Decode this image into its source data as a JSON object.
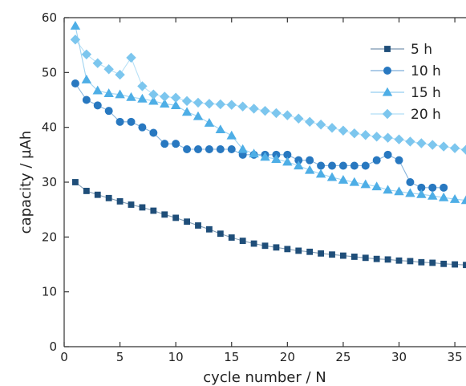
{
  "chart_data": {
    "type": "line",
    "xlabel": "cycle number / N",
    "ylabel": "capacity / µAh",
    "xlim": [
      0,
      36
    ],
    "ylim": [
      0,
      60
    ],
    "xticks": [
      0,
      5,
      10,
      15,
      20,
      25,
      30,
      35
    ],
    "yticks": [
      0,
      10,
      20,
      30,
      40,
      50,
      60
    ],
    "grid": false,
    "legend_position": "top-right",
    "series": [
      {
        "name": "5 h",
        "marker": "square",
        "color": "#1f4e79",
        "x": [
          1,
          2,
          3,
          4,
          5,
          6,
          7,
          8,
          9,
          10,
          11,
          12,
          13,
          14,
          15,
          16,
          17,
          18,
          19,
          20,
          21,
          22,
          23,
          24,
          25,
          26,
          27,
          28,
          29,
          30,
          31,
          32,
          33,
          34,
          35,
          36
        ],
        "y": [
          30,
          28.4,
          27.7,
          27.1,
          26.5,
          25.9,
          25.4,
          24.8,
          24.1,
          23.5,
          22.8,
          22.1,
          21.4,
          20.6,
          19.9,
          19.3,
          18.8,
          18.4,
          18.1,
          17.8,
          17.5,
          17.3,
          17.0,
          16.8,
          16.6,
          16.4,
          16.2,
          16.0,
          15.9,
          15.7,
          15.6,
          15.4,
          15.3,
          15.1,
          15.0,
          14.9
        ]
      },
      {
        "name": "10 h",
        "marker": "circle",
        "color": "#2878c0",
        "x": [
          1,
          2,
          3,
          4,
          5,
          6,
          7,
          8,
          9,
          10,
          11,
          12,
          13,
          14,
          15,
          16,
          17,
          18,
          19,
          20,
          21,
          22,
          23,
          24,
          25,
          26,
          27,
          28,
          29,
          30,
          31,
          32,
          33,
          34
        ],
        "y": [
          48,
          45,
          44,
          43,
          41,
          41,
          40,
          39,
          37,
          37,
          36,
          36,
          36,
          36,
          36,
          35,
          35,
          35,
          35,
          35,
          34,
          34,
          33,
          33,
          33,
          33,
          33,
          34,
          35,
          34,
          30,
          29,
          29,
          29
        ]
      },
      {
        "name": "15 h",
        "marker": "triangle",
        "color": "#4eaee6",
        "x": [
          1,
          2,
          3,
          4,
          5,
          6,
          7,
          8,
          9,
          10,
          11,
          12,
          13,
          14,
          15,
          16,
          17,
          18,
          19,
          20,
          21,
          22,
          23,
          24,
          25,
          26,
          27,
          28,
          29,
          30,
          31,
          32,
          33,
          34,
          35,
          36
        ],
        "y": [
          58.5,
          48.7,
          46.7,
          46.2,
          46.0,
          45.5,
          45.2,
          44.8,
          44.3,
          44.0,
          42.8,
          42.0,
          40.8,
          39.6,
          38.5,
          36.0,
          35.2,
          34.6,
          34.2,
          33.7,
          33.0,
          32.2,
          31.5,
          30.9,
          30.4,
          30.0,
          29.6,
          29.2,
          28.6,
          28.3,
          28.0,
          27.8,
          27.5,
          27.2,
          26.9,
          26.7
        ]
      },
      {
        "name": "20 h",
        "marker": "diamond",
        "color": "#7cc6ee",
        "x": [
          1,
          2,
          3,
          4,
          5,
          6,
          7,
          8,
          9,
          10,
          11,
          12,
          13,
          14,
          15,
          16,
          17,
          18,
          19,
          20,
          21,
          22,
          23,
          24,
          25,
          26,
          27,
          28,
          29,
          30,
          31,
          32,
          33,
          34,
          35,
          36
        ],
        "y": [
          56,
          53.3,
          51.7,
          50.6,
          49.6,
          52.7,
          47.5,
          46.0,
          45.6,
          45.4,
          44.8,
          44.5,
          44.3,
          44.2,
          44.1,
          43.8,
          43.4,
          43.0,
          42.6,
          42.2,
          41.6,
          41.0,
          40.5,
          39.9,
          39.4,
          38.9,
          38.6,
          38.3,
          38.1,
          37.8,
          37.4,
          37.1,
          36.8,
          36.5,
          36.2,
          35.9
        ]
      }
    ]
  }
}
